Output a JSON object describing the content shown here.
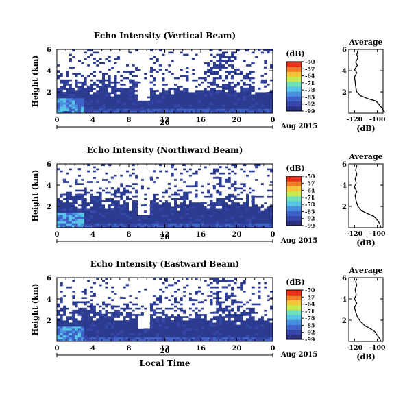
{
  "colors": {
    "background": "#ffffff",
    "fill_low": "#2b3b8f",
    "colormap": [
      "#2a2f7e",
      "#3646a6",
      "#3f62c8",
      "#4b8fe0",
      "#58c4e6",
      "#71dfb8",
      "#c8e84e",
      "#f2c53a",
      "#f07d2a",
      "#e8321e"
    ]
  },
  "chart_data": [
    {
      "type": "heatmap",
      "title": "Echo Intensity (Vertical Beam)",
      "xlabel": "",
      "ylabel": "Height (km)",
      "x_ticks": [
        "0",
        "4",
        "8",
        "12",
        "16",
        "20",
        "0"
      ],
      "y_ticks": [
        "2",
        "4",
        "6"
      ],
      "xlim_hours": [
        0,
        24
      ],
      "ylim_km": [
        0,
        6
      ],
      "date_label": "20",
      "date_suffix": "Aug 2015",
      "colorbar": {
        "title": "(dB)",
        "ticks": [
          "-50",
          "-57",
          "-64",
          "-71",
          "-78",
          "-85",
          "-92",
          "-99"
        ]
      },
      "note_hours_0_24": "echo fills low levels; above ~3 km sparse white gaps"
    },
    {
      "type": "line",
      "title": "Average",
      "xlabel": "(dB)",
      "x_ticks": [
        "-120",
        "-100"
      ],
      "y_ticks": [
        "2",
        "4",
        "6"
      ],
      "xlim": [
        -125,
        -95
      ],
      "ylim": [
        0,
        6
      ],
      "profile": [
        {
          "db": -93.5,
          "km": 0.05
        },
        {
          "db": -95,
          "km": 0.3
        },
        {
          "db": -96,
          "km": 0.5
        },
        {
          "db": -98.5,
          "km": 0.8
        },
        {
          "db": -100,
          "km": 1.0
        },
        {
          "db": -101.5,
          "km": 1.15
        },
        {
          "db": -108,
          "km": 1.35
        },
        {
          "db": -115,
          "km": 1.65
        },
        {
          "db": -118,
          "km": 2.0
        },
        {
          "db": -119,
          "km": 2.5
        },
        {
          "db": -119.5,
          "km": 3.0
        },
        {
          "db": -120,
          "km": 3.4
        },
        {
          "db": -118,
          "km": 3.8
        },
        {
          "db": -120,
          "km": 4.1
        },
        {
          "db": -117.5,
          "km": 4.5
        },
        {
          "db": -119,
          "km": 4.8
        },
        {
          "db": -117,
          "km": 5.2
        },
        {
          "db": -118,
          "km": 5.5
        },
        {
          "db": -117,
          "km": 5.9
        }
      ]
    },
    {
      "type": "heatmap",
      "title": "Echo Intensity (Northward Beam)",
      "xlabel": "",
      "ylabel": "Height (km)",
      "x_ticks": [
        "0",
        "4",
        "8",
        "12",
        "16",
        "20",
        "0"
      ],
      "y_ticks": [
        "2",
        "4",
        "6"
      ],
      "xlim_hours": [
        0,
        24
      ],
      "ylim_km": [
        0,
        6
      ],
      "date_label": "20",
      "date_suffix": "Aug 2015",
      "colorbar": {
        "title": "(dB)",
        "ticks": [
          "-50",
          "-57",
          "-64",
          "-71",
          "-78",
          "-85",
          "-92",
          "-99"
        ]
      }
    },
    {
      "type": "line",
      "title": "Average",
      "xlabel": "(dB)",
      "x_ticks": [
        "-120",
        "-100"
      ],
      "y_ticks": [
        "2",
        "4",
        "6"
      ],
      "xlim": [
        -125,
        -95
      ],
      "ylim": [
        0,
        6
      ],
      "profile": [
        {
          "db": -97,
          "km": 0.05
        },
        {
          "db": -98,
          "km": 0.4
        },
        {
          "db": -100,
          "km": 0.7
        },
        {
          "db": -101.5,
          "km": 0.9
        },
        {
          "db": -103,
          "km": 1.05
        },
        {
          "db": -108,
          "km": 1.3
        },
        {
          "db": -114,
          "km": 1.6
        },
        {
          "db": -117,
          "km": 2.0
        },
        {
          "db": -118.5,
          "km": 2.5
        },
        {
          "db": -119.5,
          "km": 3.0
        },
        {
          "db": -118,
          "km": 3.4
        },
        {
          "db": -120,
          "km": 3.8
        },
        {
          "db": -118.5,
          "km": 4.2
        },
        {
          "db": -119.5,
          "km": 4.6
        },
        {
          "db": -118,
          "km": 5.0
        },
        {
          "db": -119,
          "km": 5.4
        },
        {
          "db": -118,
          "km": 5.9
        }
      ]
    },
    {
      "type": "heatmap",
      "title": "Echo Intensity (Eastward Beam)",
      "xlabel": "Local Time",
      "ylabel": "Height (km)",
      "x_ticks": [
        "0",
        "4",
        "8",
        "12",
        "16",
        "20",
        "0"
      ],
      "y_ticks": [
        "2",
        "4",
        "6"
      ],
      "xlim_hours": [
        0,
        24
      ],
      "ylim_km": [
        0,
        6
      ],
      "date_label": "20",
      "date_suffix": "Aug 2015",
      "colorbar": {
        "title": "(dB)",
        "ticks": [
          "-50",
          "-57",
          "-64",
          "-71",
          "-78",
          "-85",
          "-92",
          "-99"
        ]
      }
    },
    {
      "type": "line",
      "title": "Average",
      "xlabel": "(dB)",
      "x_ticks": [
        "-120",
        "-100"
      ],
      "y_ticks": [
        "2",
        "4",
        "6"
      ],
      "xlim": [
        -125,
        -95
      ],
      "ylim": [
        0,
        6
      ],
      "profile": [
        {
          "db": -97,
          "km": 0.05
        },
        {
          "db": -98.5,
          "km": 0.35
        },
        {
          "db": -100.5,
          "km": 0.65
        },
        {
          "db": -102.5,
          "km": 0.95
        },
        {
          "db": -106,
          "km": 1.2
        },
        {
          "db": -111,
          "km": 1.5
        },
        {
          "db": -115,
          "km": 1.9
        },
        {
          "db": -117.5,
          "km": 2.3
        },
        {
          "db": -119,
          "km": 2.8
        },
        {
          "db": -120,
          "km": 3.2
        },
        {
          "db": -118,
          "km": 3.6
        },
        {
          "db": -120,
          "km": 4.0
        },
        {
          "db": -118.5,
          "km": 4.4
        },
        {
          "db": -119.5,
          "km": 4.9
        },
        {
          "db": -118,
          "km": 5.3
        },
        {
          "db": -119,
          "km": 5.6
        },
        {
          "db": -118,
          "km": 5.9
        }
      ]
    }
  ]
}
